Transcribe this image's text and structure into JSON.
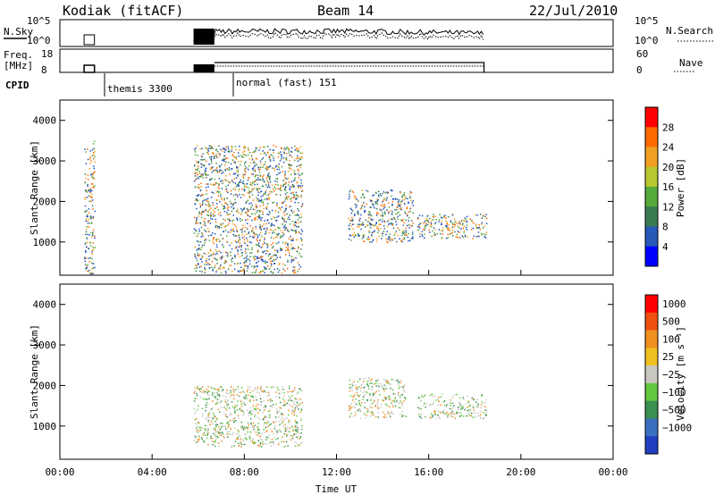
{
  "header": {
    "radar": "Kodiak (fitACF)",
    "beam": "Beam 14",
    "date": "22/Jul/2010"
  },
  "top_panels": {
    "nsky_label": "N.Sky",
    "nsky_ticks": [
      "10^5",
      "10^0"
    ],
    "nsearch_label": "N.Search",
    "nsearch_ticks": [
      "10^5",
      "10^0"
    ],
    "freq_label_1": "Freq.",
    "freq_label_2": "[MHz]",
    "freq_ticks": [
      "18",
      "8"
    ],
    "nave_label": "Nave",
    "nave_ticks": [
      "60",
      "0"
    ],
    "cpid_label": "CPID",
    "cpid_entries": [
      {
        "label": "themis 3300",
        "start": "01:05"
      },
      {
        "label": "normal (fast) 151",
        "start": "06:40"
      }
    ]
  },
  "chart_data": [
    {
      "type": "heatmap",
      "title": "",
      "xlabel": "",
      "ylabel": "Slant Range [km]",
      "xlim": [
        "00:00",
        "24:00"
      ],
      "ylim": [
        180,
        4500
      ],
      "yticks": [
        "1000",
        "2000",
        "3000",
        "4000"
      ],
      "colorbar": {
        "label": "Power [dB]",
        "ticks": [
          "4",
          "8",
          "12",
          "16",
          "20",
          "24",
          "28"
        ],
        "colors": [
          "#0000ff",
          "#2858b8",
          "#3a7a50",
          "#55aa3a",
          "#b8c830",
          "#f0a020",
          "#ff6a00",
          "#ff0000"
        ]
      },
      "scatter_regions": [
        {
          "t_start": 1.05,
          "t_end": 1.5,
          "r_start": 200,
          "r_end": 3500,
          "value": "4-8 dB"
        },
        {
          "t_start": 5.8,
          "t_end": 10.5,
          "r_start": 250,
          "r_end": 3400,
          "value": "4-28 dB"
        },
        {
          "t_start": 12.5,
          "t_end": 15.3,
          "r_start": 1000,
          "r_end": 2300,
          "value": "4-16 dB"
        },
        {
          "t_start": 15.5,
          "t_end": 18.5,
          "r_start": 1100,
          "r_end": 1700,
          "value": "4-8 dB"
        }
      ]
    },
    {
      "type": "heatmap",
      "title": "",
      "xlabel": "Time UT",
      "ylabel": "Slant Range [km]",
      "xlim": [
        "00:00",
        "24:00"
      ],
      "ylim": [
        180,
        4500
      ],
      "yticks": [
        "1000",
        "2000",
        "3000",
        "4000"
      ],
      "xticks": [
        "00:00",
        "04:00",
        "08:00",
        "12:00",
        "16:00",
        "20:00",
        "00:00"
      ],
      "colorbar": {
        "label": "Velocity [m s⁻¹]",
        "ticks": [
          "1000",
          "500",
          "100",
          "25",
          "−25",
          "−100",
          "−500",
          "−1000"
        ],
        "colors": [
          "#2040c0",
          "#3a70c0",
          "#3a9050",
          "#60c840",
          "#c8c8c0",
          "#f0c020",
          "#f09020",
          "#f05010",
          "#ff0000"
        ]
      },
      "scatter_regions": [
        {
          "t_start": 5.8,
          "t_end": 10.5,
          "r_start": 500,
          "r_end": 2000,
          "value": "ground scatter / green"
        },
        {
          "t_start": 12.5,
          "t_end": 15.0,
          "r_start": 1200,
          "r_end": 2200,
          "value": "-100 to -500 m/s"
        },
        {
          "t_start": 15.5,
          "t_end": 18.5,
          "r_start": 1200,
          "r_end": 1800,
          "value": "ground scatter"
        }
      ]
    }
  ]
}
